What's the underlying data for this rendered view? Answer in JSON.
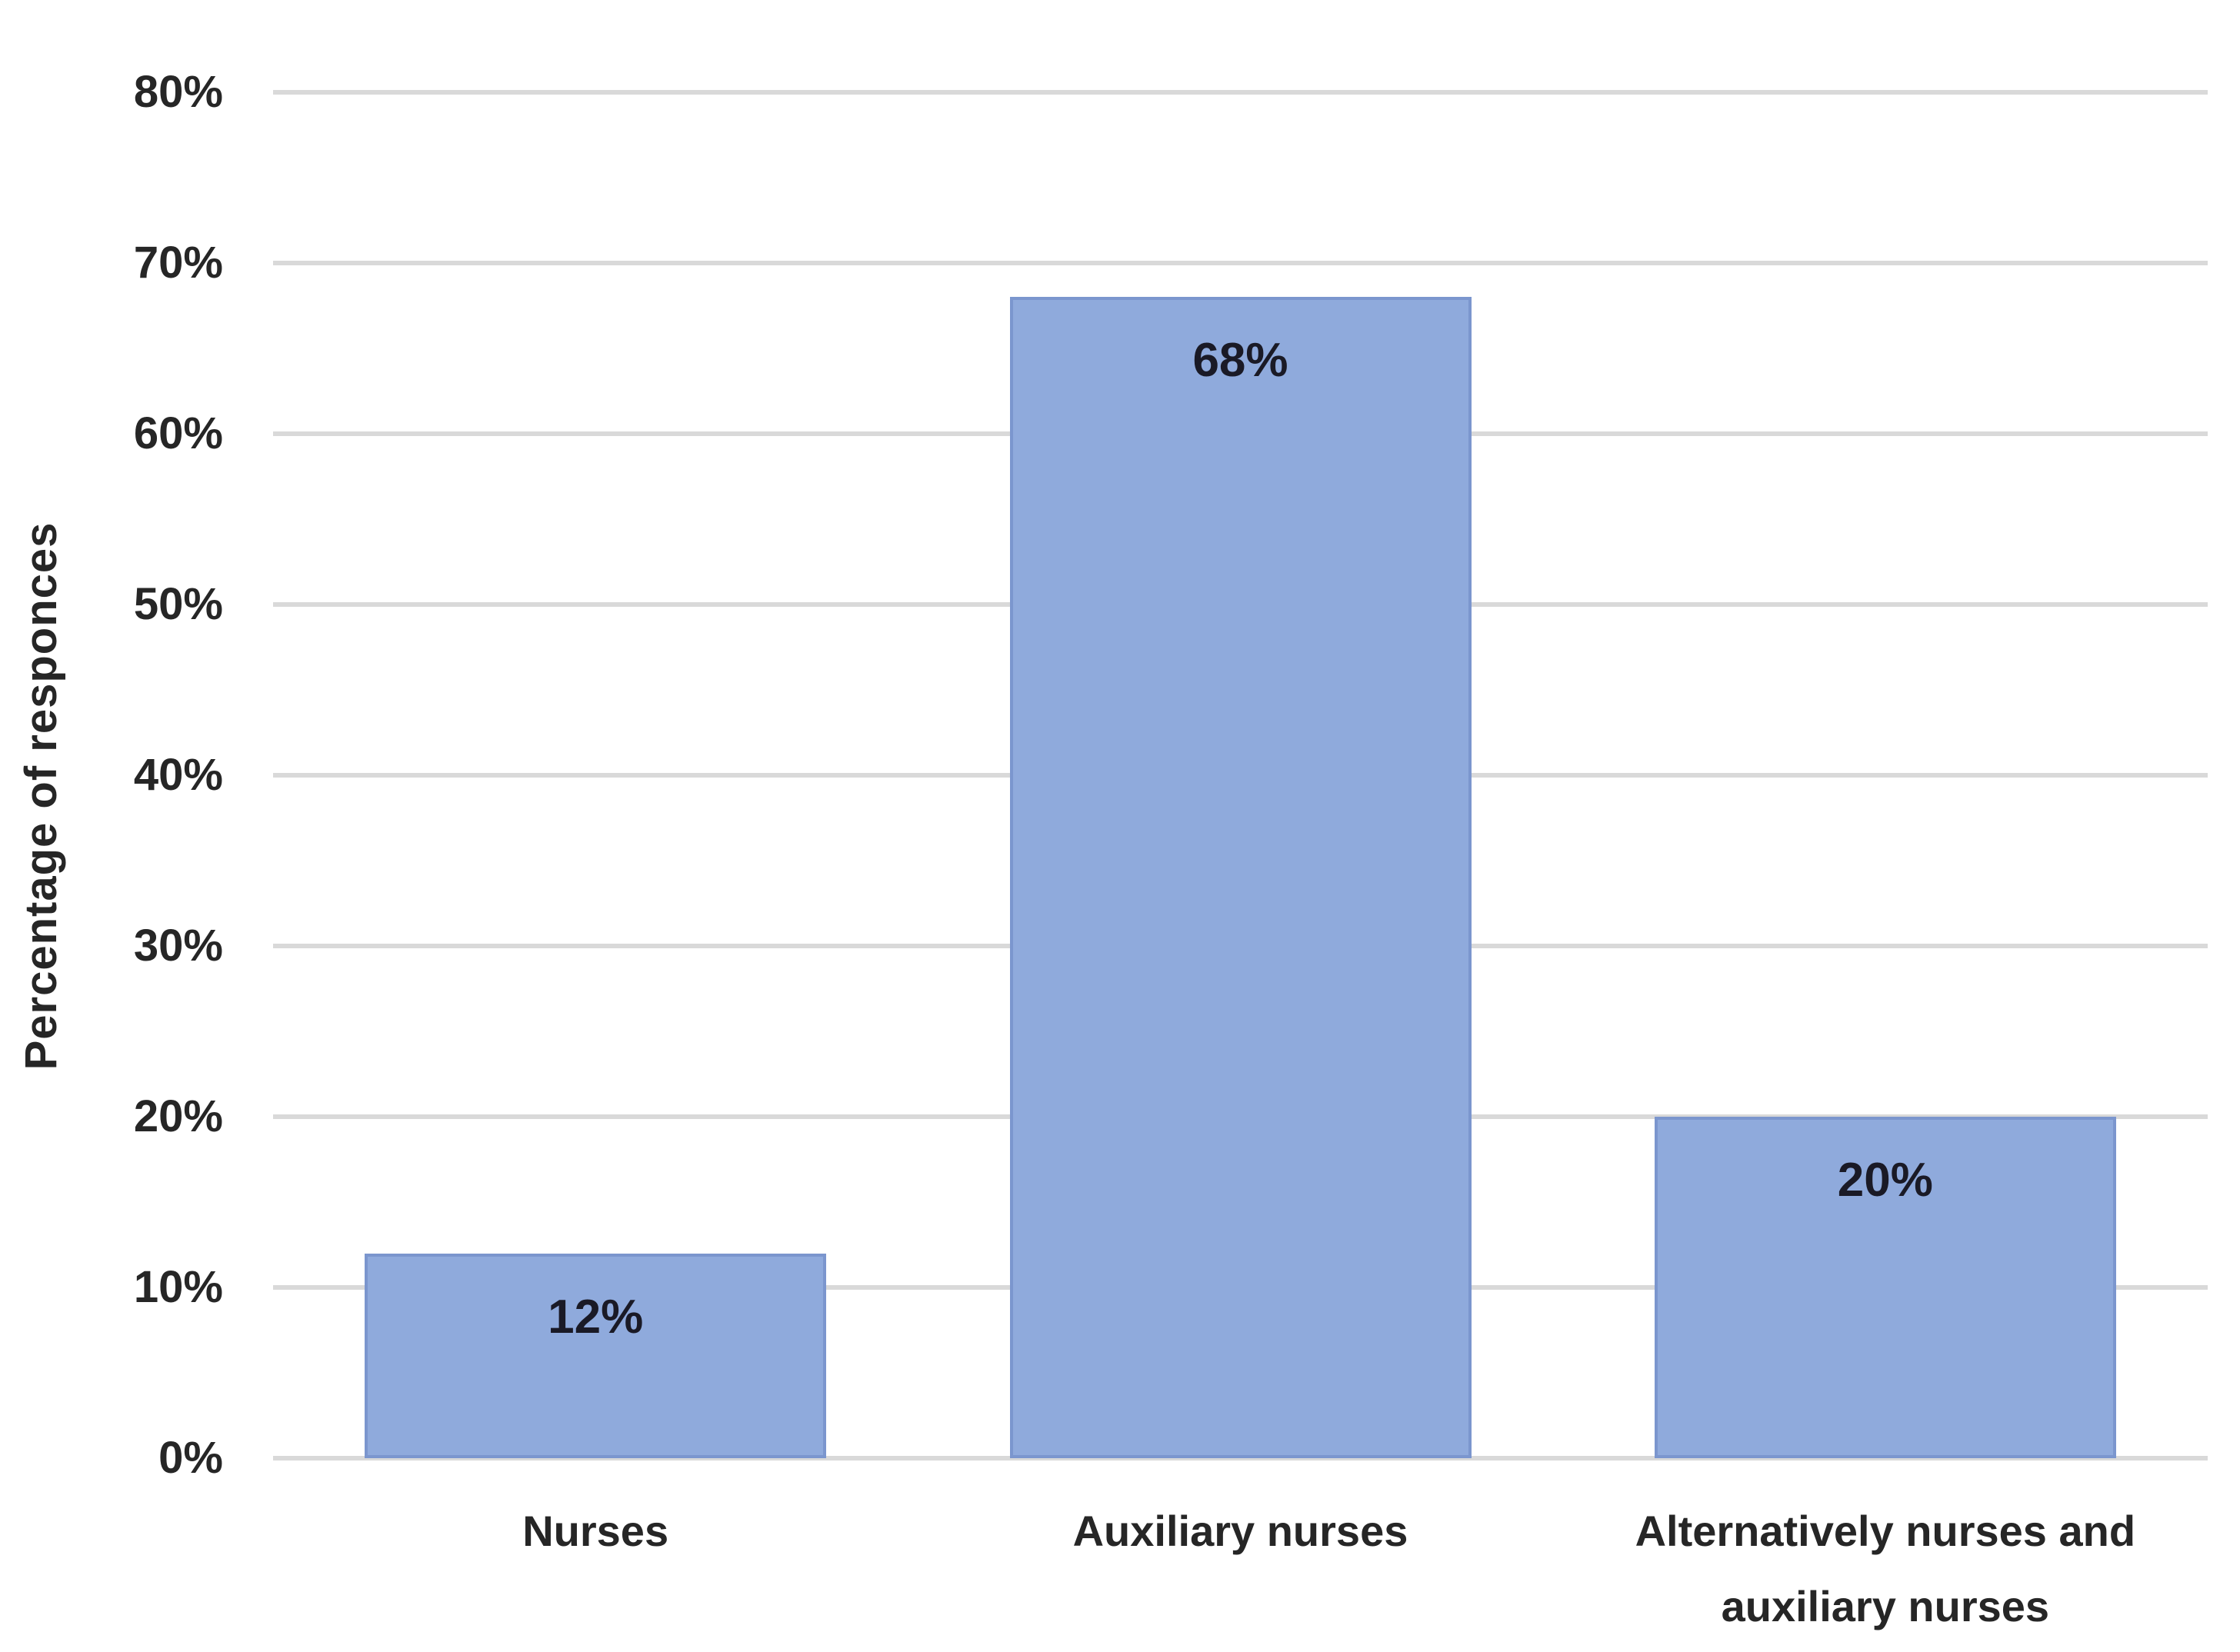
{
  "chart_data": {
    "type": "bar",
    "title": "",
    "xlabel": "",
    "ylabel": "Percentage of responces",
    "categories": [
      "Nurses",
      "Auxiliary nurses",
      "Alternatively nurses and auxiliary nurses"
    ],
    "category_lines": [
      [
        "Nurses"
      ],
      [
        "Auxiliary nurses"
      ],
      [
        "Alternatively nurses and",
        "auxiliary nurses"
      ]
    ],
    "values": [
      12,
      68,
      20
    ],
    "value_labels": [
      "12%",
      "68%",
      "20%"
    ],
    "yticks": [
      "0%",
      "10%",
      "20%",
      "30%",
      "40%",
      "50%",
      "60%",
      "70%",
      "80%"
    ],
    "ytick_values": [
      0,
      10,
      20,
      30,
      40,
      50,
      60,
      70,
      80
    ],
    "ylim": [
      0,
      80
    ],
    "grid": "on",
    "legend": "none",
    "colors": {
      "bar_fill": "#8faadc",
      "bar_border": "#7b96ce",
      "gridline": "#d9d9d9",
      "tick_text": "#262626",
      "value_text": "#1a1a26",
      "background": "#ffffff"
    }
  }
}
